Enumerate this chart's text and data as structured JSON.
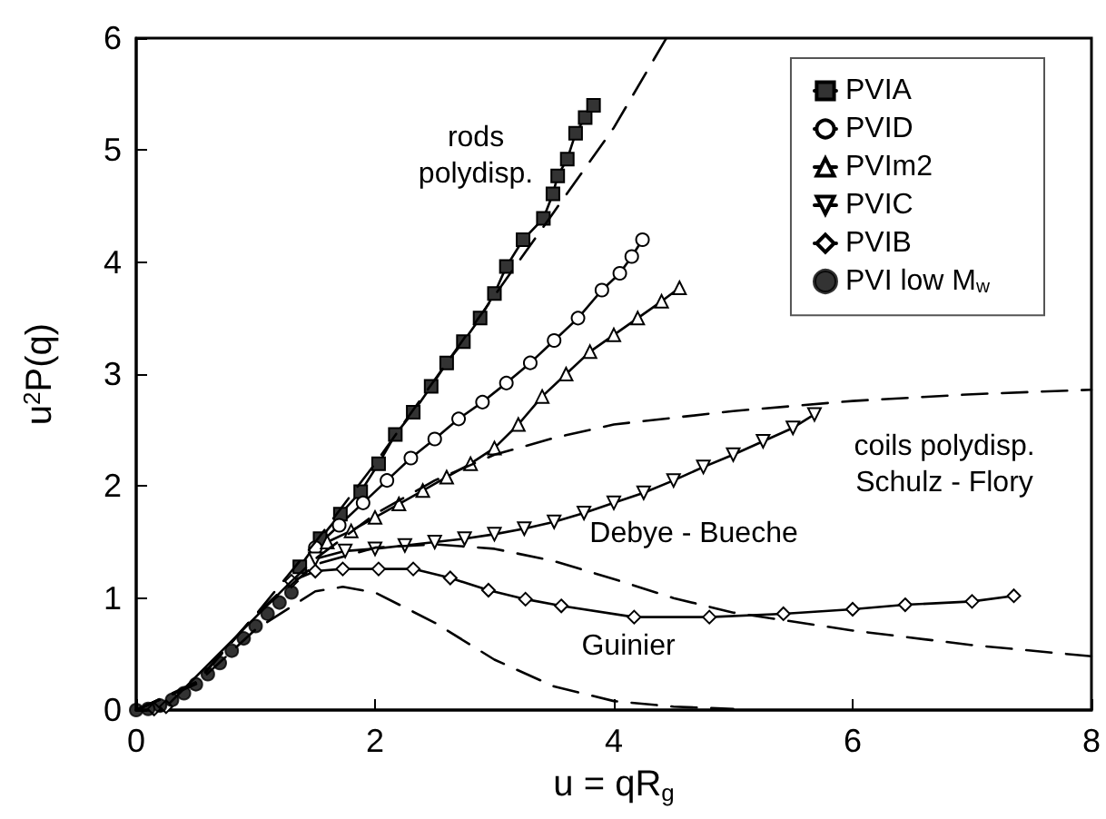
{
  "chart_data": {
    "type": "line",
    "xlabel": "u = qR$_{g}$",
    "ylabel": "u$^{2}$P(q)",
    "xlim": [
      0,
      8
    ],
    "xticks": [
      0,
      2,
      4,
      6,
      8
    ],
    "ylim": [
      0,
      6
    ],
    "yticks": [
      0,
      1,
      2,
      3,
      4,
      5,
      6
    ],
    "grid": false,
    "legend": "top right",
    "line_style": "solid",
    "annotations": [
      "rods\npolydisp.",
      "coils polydisp.\nSchulz - Flory",
      "Debye - Bueche",
      "Guinier"
    ],
    "series": [
      {
        "name": "PVIA",
        "marker": "square",
        "color": "#333333",
        "x": [
          1.37,
          1.54,
          1.71,
          1.88,
          2.03,
          2.17,
          2.32,
          2.47,
          2.6,
          2.74,
          2.88,
          3.0,
          3.1,
          3.24,
          3.41,
          3.49,
          3.53,
          3.61,
          3.68,
          3.76,
          3.83
        ],
        "values": [
          1.28,
          1.53,
          1.75,
          1.95,
          2.2,
          2.46,
          2.66,
          2.89,
          3.1,
          3.29,
          3.5,
          3.72,
          3.96,
          4.2,
          4.39,
          4.61,
          4.77,
          4.92,
          5.15,
          5.29,
          5.4
        ]
      },
      {
        "name": "PVID",
        "marker": "circle",
        "color": "#ffffff",
        "x": [
          1.5,
          1.7,
          1.9,
          2.1,
          2.3,
          2.5,
          2.7,
          2.9,
          3.1,
          3.3,
          3.5,
          3.7,
          3.9,
          4.05,
          4.15,
          4.24
        ],
        "values": [
          1.45,
          1.65,
          1.85,
          2.05,
          2.25,
          2.42,
          2.6,
          2.75,
          2.92,
          3.1,
          3.3,
          3.5,
          3.75,
          3.9,
          4.05,
          4.2
        ]
      },
      {
        "name": "PVIm2",
        "marker": "triangle",
        "color": "#ffffff",
        "x": [
          1.6,
          1.8,
          2.0,
          2.2,
          2.4,
          2.6,
          2.8,
          3.0,
          3.2,
          3.4,
          3.6,
          3.8,
          4.0,
          4.2,
          4.4,
          4.55
        ],
        "values": [
          1.5,
          1.6,
          1.72,
          1.84,
          1.96,
          2.08,
          2.2,
          2.34,
          2.55,
          2.8,
          3.0,
          3.2,
          3.35,
          3.5,
          3.65,
          3.77
        ]
      },
      {
        "name": "PVIC",
        "marker": "triangle-down",
        "color": "#ffffff",
        "x": [
          1.5,
          1.75,
          2.0,
          2.25,
          2.5,
          2.75,
          3.0,
          3.25,
          3.5,
          3.75,
          4.0,
          4.25,
          4.5,
          4.75,
          5.0,
          5.25,
          5.5,
          5.68
        ],
        "values": [
          1.35,
          1.42,
          1.44,
          1.47,
          1.5,
          1.53,
          1.57,
          1.62,
          1.68,
          1.76,
          1.85,
          1.94,
          2.05,
          2.17,
          2.28,
          2.4,
          2.52,
          2.64
        ]
      },
      {
        "name": "PVIB",
        "marker": "diamond",
        "color": "#ffffff",
        "x": [
          0.15,
          0.25,
          1.3,
          1.5,
          1.73,
          2.03,
          2.32,
          2.63,
          2.95,
          3.26,
          3.56,
          4.17,
          4.8,
          5.42,
          6.0,
          6.44,
          7.0,
          7.35
        ],
        "values": [
          0.01,
          0.03,
          1.15,
          1.24,
          1.26,
          1.26,
          1.26,
          1.18,
          1.07,
          0.99,
          0.93,
          0.83,
          0.83,
          0.86,
          0.9,
          0.94,
          0.97,
          1.02
        ]
      },
      {
        "name": "PVI low M$_{w}$",
        "type": "scatter",
        "marker": "circle",
        "color": "#000000",
        "x": [
          0.0,
          0.1,
          0.2,
          0.3,
          0.4,
          0.5,
          0.6,
          0.7,
          0.8,
          0.9,
          1.0,
          1.1,
          1.2,
          1.3
        ],
        "values": [
          0.0,
          0.01,
          0.04,
          0.09,
          0.15,
          0.23,
          0.32,
          0.42,
          0.53,
          0.64,
          0.75,
          0.86,
          0.96,
          1.05
        ]
      },
      {
        "marker": "none",
        "line_style": "dashed",
        "color": "#000000",
        "x": [
          0,
          0.5,
          1,
          1.5,
          2,
          2.5,
          3,
          3.5,
          4,
          4.44
        ],
        "values": [
          0,
          0.25,
          0.85,
          1.5,
          2.2,
          2.95,
          3.7,
          4.45,
          5.2,
          6
        ]
      },
      {
        "marker": "none",
        "line_style": "dashed",
        "color": "#000000",
        "x": [
          0,
          0.5,
          1,
          1.5,
          2,
          2.5,
          3,
          3.5,
          4,
          5,
          6,
          7,
          8
        ],
        "values": [
          0,
          0.24,
          0.85,
          1.35,
          1.75,
          2.05,
          2.28,
          2.43,
          2.55,
          2.67,
          2.76,
          2.82,
          2.86
        ]
      },
      {
        "marker": "none",
        "line_style": "dashed",
        "color": "#000000",
        "x": [
          0,
          0.5,
          1,
          1.5,
          2,
          2.5,
          3,
          3.5,
          4,
          4.5,
          5,
          6,
          7,
          8
        ],
        "values": [
          0,
          0.24,
          0.85,
          1.3,
          1.45,
          1.48,
          1.44,
          1.33,
          1.17,
          1.0,
          0.87,
          0.71,
          0.58,
          0.48
        ]
      },
      {
        "marker": "none",
        "line_style": "dashed",
        "color": "#000000",
        "x": [
          0,
          0.5,
          1,
          1.5,
          1.73,
          2,
          2.5,
          3,
          3.5,
          4,
          4.5,
          5
        ],
        "values": [
          0,
          0.23,
          0.72,
          1.06,
          1.1,
          1.05,
          0.78,
          0.45,
          0.21,
          0.08,
          0.03,
          0.01
        ]
      }
    ]
  }
}
